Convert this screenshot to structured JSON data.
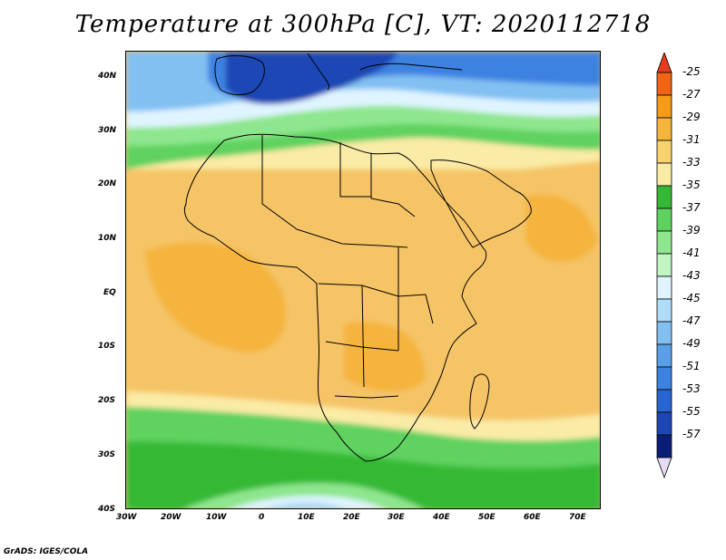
{
  "title": "Temperature at 300hPa [C], VT: 2020112718",
  "credit": "GrADS: IGES/COLA",
  "map": {
    "region": "Africa and surrounding seas",
    "lat_labels": [
      "40N",
      "30N",
      "20N",
      "10N",
      "EQ",
      "10S",
      "20S",
      "30S",
      "40S"
    ],
    "lon_labels": [
      "30W",
      "20W",
      "10W",
      "0",
      "10E",
      "20E",
      "30E",
      "40E",
      "50E",
      "60E",
      "70E"
    ]
  },
  "colorbar": {
    "labels": [
      "-25",
      "-27",
      "-29",
      "-31",
      "-33",
      "-35",
      "-37",
      "-39",
      "-41",
      "-43",
      "-45",
      "-47",
      "-49",
      "-51",
      "-53",
      "-55",
      "-57"
    ],
    "colors": [
      "#e63c1e",
      "#f06414",
      "#f59b18",
      "#f5b43c",
      "#f8d26e",
      "#faeba6",
      "#35b935",
      "#5ed25e",
      "#8ee68e",
      "#c3f5c3",
      "#dff4ff",
      "#b0dcf8",
      "#82c0f2",
      "#5aa0e8",
      "#3c82e1",
      "#2864d2",
      "#1e46b4",
      "#0a1e78",
      "#e6dcf5"
    ]
  }
}
